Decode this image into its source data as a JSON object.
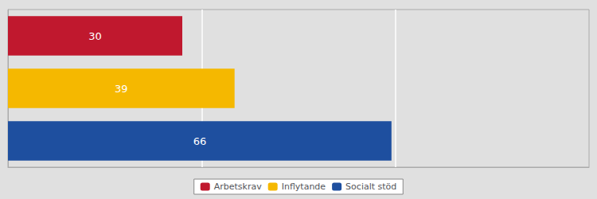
{
  "chart_data": {
    "type": "bar",
    "orientation": "horizontal",
    "categories": [
      "Arbetskrav",
      "Inflytande",
      "Socialt stöd"
    ],
    "values": [
      30,
      39,
      66
    ],
    "colors": [
      "#c0182e",
      "#f5b800",
      "#1e4f9f"
    ],
    "xlim": [
      0,
      100
    ],
    "xticks": [
      33.33,
      66.67
    ],
    "grid": true,
    "data_labels": true,
    "tick_labels": false,
    "legend": "bottom"
  }
}
